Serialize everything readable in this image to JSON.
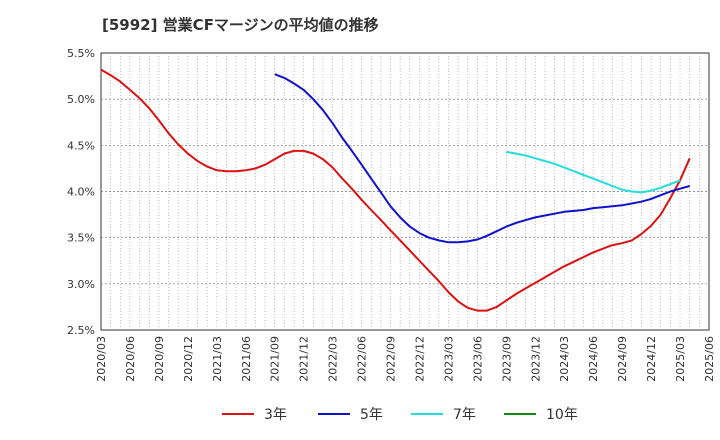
{
  "title": "[5992]  営業CFマージンの平均値の推移",
  "chart_data": {
    "type": "line",
    "y_ticks": [
      "5.5%",
      "5.0%",
      "4.5%",
      "4.0%",
      "3.5%",
      "3.0%",
      "2.5%"
    ],
    "y_values": [
      5.5,
      5.0,
      4.5,
      4.0,
      3.5,
      3.0,
      2.5
    ],
    "ylim": [
      2.5,
      5.5
    ],
    "x_ticks": [
      "2020/03",
      "2020/06",
      "2020/09",
      "2020/12",
      "2021/03",
      "2021/06",
      "2021/09",
      "2021/12",
      "2022/03",
      "2022/06",
      "2022/09",
      "2022/12",
      "2023/03",
      "2023/06",
      "2023/09",
      "2023/12",
      "2024/03",
      "2024/06",
      "2024/09",
      "2024/12",
      "2025/03",
      "2025/06"
    ],
    "x_range": [
      "2020/03",
      "2025/06"
    ],
    "grid": true,
    "legend_position": "bottom",
    "series": [
      {
        "name": "3年",
        "color": "#dd1111",
        "points": [
          [
            "2020/03",
            5.32
          ],
          [
            "2020/04",
            5.26
          ],
          [
            "2020/05",
            5.19
          ],
          [
            "2020/06",
            5.1
          ],
          [
            "2020/07",
            5.01
          ],
          [
            "2020/08",
            4.9
          ],
          [
            "2020/09",
            4.77
          ],
          [
            "2020/10",
            4.63
          ],
          [
            "2020/11",
            4.51
          ],
          [
            "2020/12",
            4.41
          ],
          [
            "2021/01",
            4.33
          ],
          [
            "2021/02",
            4.27
          ],
          [
            "2021/03",
            4.23
          ],
          [
            "2021/04",
            4.22
          ],
          [
            "2021/05",
            4.22
          ],
          [
            "2021/06",
            4.23
          ],
          [
            "2021/07",
            4.25
          ],
          [
            "2021/08",
            4.29
          ],
          [
            "2021/09",
            4.35
          ],
          [
            "2021/10",
            4.41
          ],
          [
            "2021/11",
            4.44
          ],
          [
            "2021/12",
            4.44
          ],
          [
            "2022/01",
            4.41
          ],
          [
            "2022/02",
            4.35
          ],
          [
            "2022/03",
            4.26
          ],
          [
            "2022/04",
            4.14
          ],
          [
            "2022/05",
            4.03
          ],
          [
            "2022/06",
            3.91
          ],
          [
            "2022/07",
            3.8
          ],
          [
            "2022/08",
            3.69
          ],
          [
            "2022/09",
            3.58
          ],
          [
            "2022/10",
            3.47
          ],
          [
            "2022/11",
            3.36
          ],
          [
            "2022/12",
            3.25
          ],
          [
            "2023/01",
            3.14
          ],
          [
            "2023/02",
            3.03
          ],
          [
            "2023/03",
            2.91
          ],
          [
            "2023/04",
            2.81
          ],
          [
            "2023/05",
            2.74
          ],
          [
            "2023/06",
            2.71
          ],
          [
            "2023/07",
            2.71
          ],
          [
            "2023/08",
            2.75
          ],
          [
            "2023/09",
            2.82
          ],
          [
            "2023/10",
            2.89
          ],
          [
            "2023/11",
            2.95
          ],
          [
            "2023/12",
            3.01
          ],
          [
            "2024/01",
            3.07
          ],
          [
            "2024/02",
            3.13
          ],
          [
            "2024/03",
            3.19
          ],
          [
            "2024/04",
            3.24
          ],
          [
            "2024/05",
            3.29
          ],
          [
            "2024/06",
            3.34
          ],
          [
            "2024/07",
            3.38
          ],
          [
            "2024/08",
            3.42
          ],
          [
            "2024/09",
            3.44
          ],
          [
            "2024/10",
            3.47
          ],
          [
            "2024/11",
            3.54
          ],
          [
            "2024/12",
            3.63
          ],
          [
            "2025/01",
            3.75
          ],
          [
            "2025/02",
            3.93
          ],
          [
            "2025/03",
            4.12
          ],
          [
            "2025/04",
            4.36
          ]
        ]
      },
      {
        "name": "5年",
        "color": "#1111cc",
        "points": [
          [
            "2021/09",
            5.27
          ],
          [
            "2021/10",
            5.23
          ],
          [
            "2021/11",
            5.17
          ],
          [
            "2021/12",
            5.1
          ],
          [
            "2022/01",
            5.0
          ],
          [
            "2022/02",
            4.88
          ],
          [
            "2022/03",
            4.74
          ],
          [
            "2022/04",
            4.58
          ],
          [
            "2022/05",
            4.44
          ],
          [
            "2022/06",
            4.29
          ],
          [
            "2022/07",
            4.14
          ],
          [
            "2022/08",
            3.99
          ],
          [
            "2022/09",
            3.84
          ],
          [
            "2022/10",
            3.72
          ],
          [
            "2022/11",
            3.62
          ],
          [
            "2022/12",
            3.55
          ],
          [
            "2023/01",
            3.5
          ],
          [
            "2023/02",
            3.47
          ],
          [
            "2023/03",
            3.45
          ],
          [
            "2023/04",
            3.45
          ],
          [
            "2023/05",
            3.46
          ],
          [
            "2023/06",
            3.48
          ],
          [
            "2023/07",
            3.52
          ],
          [
            "2023/08",
            3.57
          ],
          [
            "2023/09",
            3.62
          ],
          [
            "2023/10",
            3.66
          ],
          [
            "2023/11",
            3.69
          ],
          [
            "2023/12",
            3.72
          ],
          [
            "2024/01",
            3.74
          ],
          [
            "2024/02",
            3.76
          ],
          [
            "2024/03",
            3.78
          ],
          [
            "2024/04",
            3.79
          ],
          [
            "2024/05",
            3.8
          ],
          [
            "2024/06",
            3.82
          ],
          [
            "2024/07",
            3.83
          ],
          [
            "2024/08",
            3.84
          ],
          [
            "2024/09",
            3.85
          ],
          [
            "2024/10",
            3.87
          ],
          [
            "2024/11",
            3.89
          ],
          [
            "2024/12",
            3.92
          ],
          [
            "2025/01",
            3.96
          ],
          [
            "2025/02",
            4.0
          ],
          [
            "2025/03",
            4.03
          ],
          [
            "2025/04",
            4.06
          ]
        ]
      },
      {
        "name": "7年",
        "color": "#22dddd",
        "points": [
          [
            "2023/09",
            4.43
          ],
          [
            "2023/10",
            4.41
          ],
          [
            "2023/11",
            4.39
          ],
          [
            "2023/12",
            4.36
          ],
          [
            "2024/01",
            4.33
          ],
          [
            "2024/02",
            4.3
          ],
          [
            "2024/03",
            4.26
          ],
          [
            "2024/04",
            4.22
          ],
          [
            "2024/05",
            4.18
          ],
          [
            "2024/06",
            4.14
          ],
          [
            "2024/07",
            4.1
          ],
          [
            "2024/08",
            4.06
          ],
          [
            "2024/09",
            4.02
          ],
          [
            "2024/10",
            4.0
          ],
          [
            "2024/11",
            3.99
          ],
          [
            "2024/12",
            4.01
          ],
          [
            "2025/01",
            4.04
          ],
          [
            "2025/02",
            4.08
          ],
          [
            "2025/03",
            4.12
          ]
        ]
      },
      {
        "name": "10年",
        "color": "#118811",
        "points": []
      }
    ]
  }
}
